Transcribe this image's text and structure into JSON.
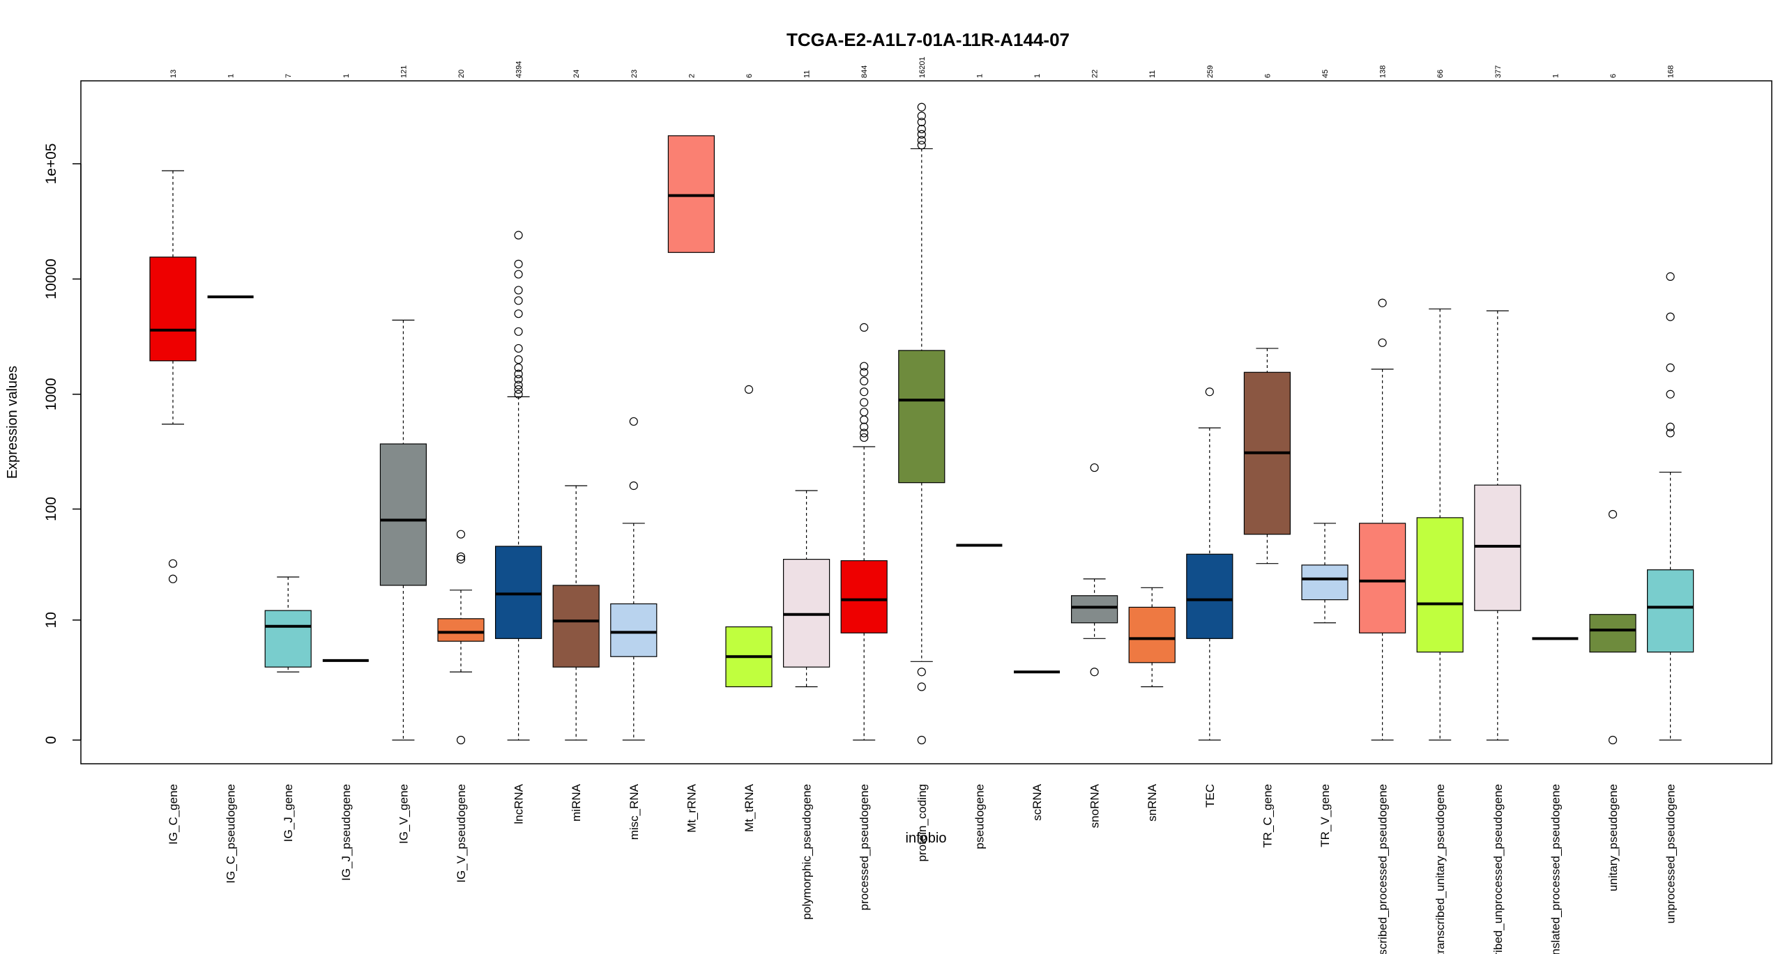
{
  "chart_data": {
    "type": "box",
    "title": "TCGA-E2-A1L7-01A-11R-A144-07",
    "xlabel": "infobio",
    "ylabel": "Expression values",
    "y_scale": "log1p",
    "y_ticks": [
      0,
      10,
      100,
      1000,
      10000,
      100000
    ],
    "y_tick_labels": [
      "0",
      "10",
      "100",
      "1000",
      "10000",
      "1e+05"
    ],
    "ylim": [
      0,
      300000
    ],
    "grid": false,
    "categories": [
      "IG_C_gene",
      "IG_C_pseudogene",
      "IG_J_gene",
      "IG_J_pseudogene",
      "IG_V_gene",
      "IG_V_pseudogene",
      "lncRNA",
      "miRNA",
      "misc_RNA",
      "Mt_rRNA",
      "Mt_tRNA",
      "polymorphic_pseudogene",
      "processed_pseudogene",
      "protein_coding",
      "pseudogene",
      "scRNA",
      "snoRNA",
      "snRNA",
      "TEC",
      "TR_C_gene",
      "TR_V_gene",
      "transcribed_processed_pseudogene",
      "transcribed_unitary_pseudogene",
      "transcribed_unprocessed_pseudogene",
      "translated_processed_pseudogene",
      "unitary_pseudogene",
      "unprocessed_pseudogene"
    ],
    "counts": [
      "13",
      "1",
      "7",
      "1",
      "121",
      "20",
      "4394",
      "24",
      "23",
      "2",
      "6",
      "11",
      "844",
      "16201",
      "1",
      "1",
      "22",
      "11",
      "259",
      "6",
      "45",
      "138",
      "66",
      "377",
      "1",
      "6",
      "168"
    ],
    "boxes": [
      {
        "color": "#EE0000",
        "whisker_low": 550,
        "q1": 1950,
        "median": 3600,
        "q3": 15500,
        "whisker_high": 87000,
        "outliers": [
          33,
          24
        ]
      },
      {
        "color": "#EE0000",
        "whisker_low": 7000,
        "q1": 7000,
        "median": 7000,
        "q3": 7000,
        "whisker_high": 7000,
        "outliers": []
      },
      {
        "color": "#79CDCD",
        "whisker_low": 2.9,
        "q1": 3.3,
        "median": 8.7,
        "q3": 12.3,
        "whisker_high": 25,
        "outliers": []
      },
      {
        "color": "#79CDCD",
        "whisker_low": 3.9,
        "q1": 3.9,
        "median": 3.9,
        "q3": 3.9,
        "whisker_high": 3.9,
        "outliers": []
      },
      {
        "color": "#838B8B",
        "whisker_low": 0,
        "q1": 21,
        "median": 80,
        "q3": 370,
        "whisker_high": 4400,
        "outliers": []
      },
      {
        "color": "#EE7942",
        "whisker_low": 2.9,
        "q1": 6.2,
        "median": 7.6,
        "q3": 10.3,
        "whisker_high": 19,
        "outliers": [
          60,
          38,
          36,
          0
        ]
      },
      {
        "color": "#104E8B",
        "whisker_low": 0,
        "q1": 6.6,
        "median": 17.5,
        "q3": 47,
        "whisker_high": 950,
        "outliers": [
          24000,
          13500,
          11000,
          8000,
          6500,
          5000,
          3500,
          2500,
          2000,
          1700,
          1500,
          1350,
          1200,
          1100,
          1000
        ]
      },
      {
        "color": "#8B5742",
        "whisker_low": 0,
        "q1": 3.3,
        "median": 9.8,
        "q3": 21,
        "whisker_high": 160,
        "outliers": []
      },
      {
        "color": "#B9D3EE",
        "whisker_low": 0,
        "q1": 4.3,
        "median": 7.6,
        "q3": 14.2,
        "whisker_high": 75,
        "outliers": [
          580,
          160
        ]
      },
      {
        "color": "#FA8072",
        "whisker_low": 17000,
        "q1": 17000,
        "median": 53000,
        "q3": 175000,
        "whisker_high": 175000,
        "outliers": []
      },
      {
        "color": "#C0FF3E",
        "whisker_low": 1.9,
        "q1": 1.9,
        "median": 4.3,
        "q3": 8.6,
        "whisker_high": 8.6,
        "outliers": [
          1100
        ]
      },
      {
        "color": "#EEE0E5",
        "whisker_low": 1.9,
        "q1": 3.3,
        "median": 11.3,
        "q3": 36,
        "whisker_high": 145,
        "outliers": []
      },
      {
        "color": "#EE0000",
        "whisker_low": 0,
        "q1": 7.5,
        "median": 15.5,
        "q3": 35,
        "whisker_high": 350,
        "outliers": [
          3800,
          1750,
          1550,
          1300,
          1050,
          850,
          700,
          600,
          520,
          460,
          420
        ]
      },
      {
        "color": "#6E8B3D",
        "whisker_low": 3.8,
        "q1": 170,
        "median": 890,
        "q3": 2400,
        "whisker_high": 135000,
        "outliers": [
          310000,
          260000,
          230000,
          200000,
          180000,
          160000,
          145000,
          2.9,
          1.9,
          0
        ]
      },
      {
        "color": "#6E8B3D",
        "whisker_low": 48,
        "q1": 48,
        "median": 48,
        "q3": 48,
        "whisker_high": 48,
        "outliers": []
      },
      {
        "color": "#6E8B3D",
        "whisker_low": 2.9,
        "q1": 2.9,
        "median": 2.9,
        "q3": 2.9,
        "whisker_high": 2.9,
        "outliers": []
      },
      {
        "color": "#838B8B",
        "whisker_low": 6.6,
        "q1": 9.4,
        "median": 13.2,
        "q3": 16.9,
        "whisker_high": 24,
        "outliers": [
          230,
          2.9
        ]
      },
      {
        "color": "#EE7942",
        "whisker_low": 1.9,
        "q1": 3.7,
        "median": 6.6,
        "q3": 13.2,
        "whisker_high": 20,
        "outliers": []
      },
      {
        "color": "#104E8B",
        "whisker_low": 0,
        "q1": 6.6,
        "median": 15.5,
        "q3": 40,
        "whisker_high": 510,
        "outliers": [
          1050
        ]
      },
      {
        "color": "#8B5742",
        "whisker_low": 33,
        "q1": 60,
        "median": 310,
        "q3": 1550,
        "whisker_high": 2500,
        "outliers": []
      },
      {
        "color": "#B9D3EE",
        "whisker_low": 9.4,
        "q1": 15.5,
        "median": 24,
        "q3": 32,
        "whisker_high": 75,
        "outliers": []
      },
      {
        "color": "#FA8072",
        "whisker_low": 0,
        "q1": 7.5,
        "median": 23,
        "q3": 75,
        "whisker_high": 1650,
        "outliers": [
          6200,
          2800
        ]
      },
      {
        "color": "#C0FF3E",
        "whisker_low": 0,
        "q1": 4.8,
        "median": 14.2,
        "q3": 84,
        "whisker_high": 5500,
        "outliers": []
      },
      {
        "color": "#EEE0E5",
        "whisker_low": 0,
        "q1": 12.3,
        "median": 47,
        "q3": 162,
        "whisker_high": 5300,
        "outliers": []
      },
      {
        "color": "#EEE0E5",
        "whisker_low": 6.6,
        "q1": 6.6,
        "median": 6.6,
        "q3": 6.6,
        "whisker_high": 6.6,
        "outliers": []
      },
      {
        "color": "#6E8B3D",
        "whisker_low": 4.8,
        "q1": 4.8,
        "median": 8.0,
        "q3": 11.3,
        "whisker_high": 11.3,
        "outliers": [
          90,
          0
        ]
      },
      {
        "color": "#79CDCD",
        "whisker_low": 0,
        "q1": 4.8,
        "median": 13.2,
        "q3": 29,
        "whisker_high": 210,
        "outliers": [
          10500,
          4700,
          1700,
          1000,
          520,
          460
        ]
      }
    ]
  }
}
